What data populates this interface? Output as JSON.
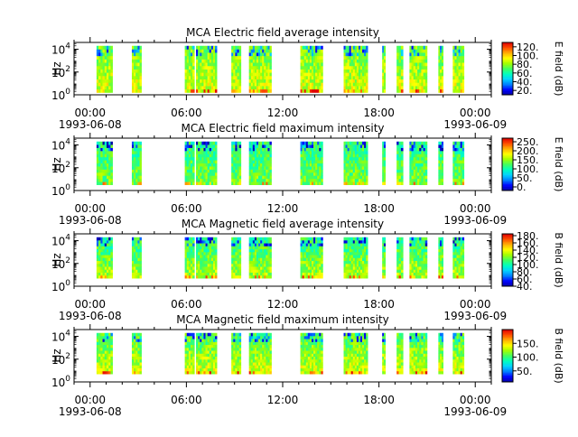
{
  "figure": {
    "time_axis": {
      "tick_labels": [
        "00:00",
        "06:00",
        "12:00",
        "18:00",
        "00:00"
      ],
      "tick_hours": [
        0,
        6,
        12,
        18,
        24
      ],
      "start_date": "1993-06-08",
      "end_date": "1993-06-09",
      "range_hours": [
        -1,
        25
      ]
    },
    "y_axis": {
      "label": "Hz",
      "scale": "log",
      "tick_labels": [
        "10^0",
        "10^2",
        "10^4"
      ],
      "range_log10": [
        0,
        4.6
      ]
    }
  },
  "colors": {
    "colormap": [
      "#0000a0",
      "#0000ff",
      "#0080ff",
      "#00d0ff",
      "#00ffc0",
      "#40ff60",
      "#a0ff00",
      "#ffff00",
      "#ffb000",
      "#ff5000",
      "#e00000"
    ]
  },
  "chart_data": [
    {
      "type": "heatmap",
      "title": "MCA  Electric field average intensity",
      "colorbar_label": "E field (dB)",
      "colorbar_ticks": [
        "20.",
        "40.",
        "60.",
        "80.",
        "100.",
        "120."
      ],
      "colorbar_range": [
        10,
        130
      ],
      "data_present_intervals_hours": [
        [
          0.4,
          1.4
        ],
        [
          2.6,
          3.2
        ],
        [
          5.9,
          6.5
        ],
        [
          6.6,
          7.9
        ],
        [
          8.8,
          9.4
        ],
        [
          9.9,
          11.3
        ],
        [
          13.1,
          14.5
        ],
        [
          15.8,
          17.3
        ],
        [
          18.2,
          18.4
        ],
        [
          19.1,
          19.5
        ],
        [
          19.9,
          21.0
        ],
        [
          21.7,
          22.0
        ],
        [
          22.6,
          23.3
        ]
      ],
      "frequency_range_log10": [
        0.2,
        4.3
      ],
      "dominant_levels_db": [
        75,
        90
      ]
    },
    {
      "type": "heatmap",
      "title": "MCA  Electric field maximum intensity",
      "colorbar_label": "E field (dB)",
      "colorbar_ticks": [
        "0.",
        "50.",
        "100.",
        "150.",
        "200.",
        "250."
      ],
      "colorbar_range": [
        -20,
        270
      ],
      "data_present_intervals_hours": [
        [
          0.4,
          1.4
        ],
        [
          2.6,
          3.2
        ],
        [
          5.9,
          6.5
        ],
        [
          6.6,
          7.9
        ],
        [
          8.8,
          9.4
        ],
        [
          9.9,
          11.3
        ],
        [
          13.1,
          14.5
        ],
        [
          15.8,
          17.3
        ],
        [
          18.2,
          18.4
        ],
        [
          19.1,
          19.5
        ],
        [
          19.9,
          21.0
        ],
        [
          21.7,
          22.0
        ],
        [
          22.6,
          23.3
        ]
      ],
      "frequency_range_log10": [
        0.5,
        4.3
      ],
      "dominant_levels_db": [
        110,
        140
      ]
    },
    {
      "type": "heatmap",
      "title": "MCA  Magnetic field average intensity",
      "colorbar_label": "B field (dB)",
      "colorbar_ticks": [
        "40.",
        "60.",
        "80.",
        "100.",
        "120.",
        "140.",
        "160.",
        "180."
      ],
      "colorbar_range": [
        40,
        185
      ],
      "data_present_intervals_hours": [
        [
          0.4,
          1.4
        ],
        [
          2.6,
          3.2
        ],
        [
          5.9,
          6.5
        ],
        [
          6.6,
          7.9
        ],
        [
          8.8,
          9.4
        ],
        [
          9.9,
          11.3
        ],
        [
          13.1,
          14.5
        ],
        [
          15.8,
          17.3
        ],
        [
          18.2,
          18.4
        ],
        [
          19.1,
          19.5
        ],
        [
          19.9,
          21.0
        ],
        [
          21.7,
          22.0
        ],
        [
          22.6,
          23.3
        ]
      ],
      "frequency_range_log10": [
        0.7,
        4.3
      ],
      "dominant_levels_db": [
        105,
        130
      ]
    },
    {
      "type": "heatmap",
      "title": "MCA  Magnetic field maximum intensity",
      "colorbar_label": "B field (dB)",
      "colorbar_ticks": [
        "50.",
        "100.",
        "150."
      ],
      "colorbar_range": [
        10,
        200
      ],
      "data_present_intervals_hours": [
        [
          0.4,
          1.4
        ],
        [
          2.6,
          3.2
        ],
        [
          5.9,
          6.5
        ],
        [
          6.6,
          7.9
        ],
        [
          8.8,
          9.4
        ],
        [
          9.9,
          11.3
        ],
        [
          13.1,
          14.5
        ],
        [
          15.8,
          17.3
        ],
        [
          18.2,
          18.4
        ],
        [
          19.1,
          19.5
        ],
        [
          19.9,
          21.0
        ],
        [
          21.7,
          22.0
        ],
        [
          22.6,
          23.3
        ]
      ],
      "frequency_range_log10": [
        0.7,
        4.3
      ],
      "dominant_levels_db": [
        105,
        135
      ]
    }
  ]
}
